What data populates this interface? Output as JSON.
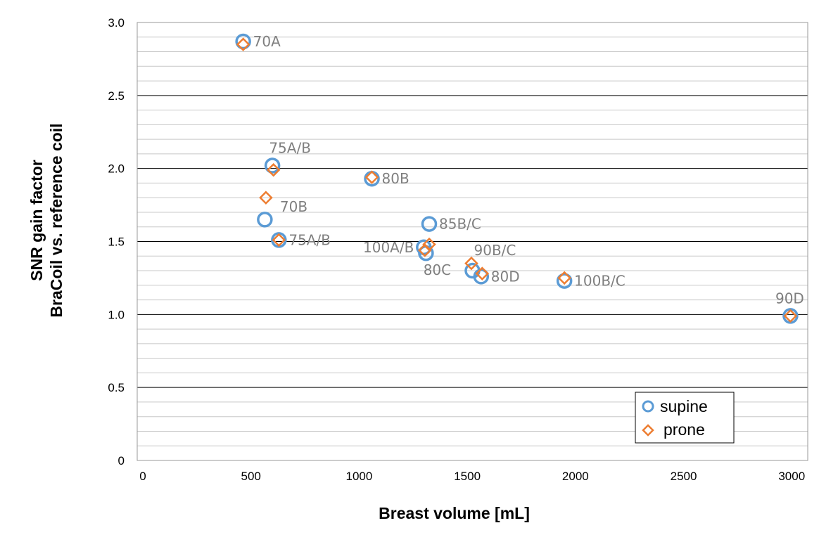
{
  "chart_data": {
    "type": "scatter",
    "title": "",
    "xlabel": "Breast volume [mL]",
    "ylabel": [
      "SNR gain factor",
      "BraCoil vs. reference coil"
    ],
    "xlim": [
      0,
      3100
    ],
    "ylim": [
      0,
      3.0
    ],
    "x_ticks": [
      "0",
      "500",
      "1000",
      "1500",
      "2000",
      "2500",
      "3000"
    ],
    "y_ticks": [
      "0",
      "0.5",
      "1.0",
      "1.5",
      "2.0",
      "2.5",
      "3.0"
    ],
    "grid": "horizontal major and minor",
    "legend_position": "bottom-right",
    "series": [
      {
        "name": "supine",
        "marker": "circle",
        "color": "#5b9bd5",
        "points": [
          {
            "x": 490,
            "y": 2.87
          },
          {
            "x": 625,
            "y": 2.02
          },
          {
            "x": 1085,
            "y": 1.93
          },
          {
            "x": 590,
            "y": 1.65
          },
          {
            "x": 655,
            "y": 1.51
          },
          {
            "x": 1350,
            "y": 1.62
          },
          {
            "x": 1325,
            "y": 1.46
          },
          {
            "x": 1335,
            "y": 1.42
          },
          {
            "x": 1550,
            "y": 1.3
          },
          {
            "x": 1590,
            "y": 1.26
          },
          {
            "x": 1975,
            "y": 1.23
          },
          {
            "x": 3020,
            "y": 0.99
          }
        ]
      },
      {
        "name": "prone",
        "marker": "diamond",
        "color": "#ed7d31",
        "points": [
          {
            "x": 490,
            "y": 2.85
          },
          {
            "x": 630,
            "y": 1.99
          },
          {
            "x": 1085,
            "y": 1.94
          },
          {
            "x": 595,
            "y": 1.8
          },
          {
            "x": 655,
            "y": 1.51
          },
          {
            "x": 1350,
            "y": 1.48
          },
          {
            "x": 1330,
            "y": 1.44
          },
          {
            "x": 1545,
            "y": 1.35
          },
          {
            "x": 1595,
            "y": 1.28
          },
          {
            "x": 1975,
            "y": 1.25
          },
          {
            "x": 3020,
            "y": 0.99
          }
        ]
      }
    ],
    "annotations": [
      {
        "text": "70A",
        "x": 490,
        "y": 2.87,
        "anchor": "right"
      },
      {
        "text": "75A/B",
        "x": 625,
        "y": 2.02,
        "anchor": "above"
      },
      {
        "text": "80B",
        "x": 1085,
        "y": 1.93,
        "anchor": "right"
      },
      {
        "text": "70B",
        "x": 595,
        "y": 1.8,
        "anchor": "below-right"
      },
      {
        "text": "75A/B",
        "x": 655,
        "y": 1.51,
        "anchor": "right"
      },
      {
        "text": "85B/C",
        "x": 1350,
        "y": 1.62,
        "anchor": "right"
      },
      {
        "text": "100A/B",
        "x": 1325,
        "y": 1.46,
        "anchor": "left"
      },
      {
        "text": "80C",
        "x": 1335,
        "y": 1.42,
        "anchor": "below"
      },
      {
        "text": "90B/C",
        "x": 1550,
        "y": 1.3,
        "anchor": "above-right"
      },
      {
        "text": "80D",
        "x": 1590,
        "y": 1.26,
        "anchor": "right"
      },
      {
        "text": "100B/C",
        "x": 1975,
        "y": 1.23,
        "anchor": "right"
      },
      {
        "text": "90D",
        "x": 3020,
        "y": 0.99,
        "anchor": "above"
      }
    ]
  }
}
